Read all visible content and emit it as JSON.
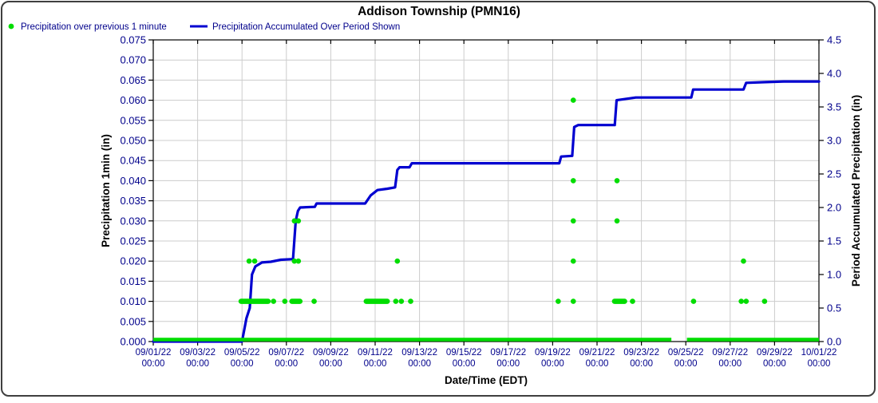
{
  "chart_data": {
    "type": "line",
    "title": "Addison Township (PMN16)",
    "legend": [
      {
        "label": "Precipitation over previous 1 minute",
        "marker": "dot-icon",
        "color": "#00dd00"
      },
      {
        "label": "Precipitation Accumulated Over Period Shown",
        "marker": "line-icon",
        "color": "#0000d0"
      }
    ],
    "x_axis": {
      "label": "Date/Time (EDT)",
      "range_days": [
        0,
        30
      ],
      "gridline_every_days": 2,
      "tick_labels": [
        {
          "date": "09/01/22",
          "time": "00:00"
        },
        {
          "date": "09/03/22",
          "time": "00:00"
        },
        {
          "date": "09/05/22",
          "time": "00:00"
        },
        {
          "date": "09/07/22",
          "time": "00:00"
        },
        {
          "date": "09/09/22",
          "time": "00:00"
        },
        {
          "date": "09/11/22",
          "time": "00:00"
        },
        {
          "date": "09/13/22",
          "time": "00:00"
        },
        {
          "date": "09/15/22",
          "time": "00:00"
        },
        {
          "date": "09/17/22",
          "time": "00:00"
        },
        {
          "date": "09/19/22",
          "time": "00:00"
        },
        {
          "date": "09/21/22",
          "time": "00:00"
        },
        {
          "date": "09/23/22",
          "time": "00:00"
        },
        {
          "date": "09/25/22",
          "time": "00:00"
        },
        {
          "date": "09/27/22",
          "time": "00:00"
        },
        {
          "date": "09/29/22",
          "time": "00:00"
        },
        {
          "date": "10/01/22",
          "time": "00:00"
        }
      ]
    },
    "left_axis": {
      "label": "Precipitation 1min (in)",
      "min": 0,
      "max": 0.075,
      "step": 0.005,
      "tick_labels": [
        "0.000",
        "0.005",
        "0.010",
        "0.015",
        "0.020",
        "0.025",
        "0.030",
        "0.035",
        "0.040",
        "0.045",
        "0.050",
        "0.055",
        "0.060",
        "0.065",
        "0.070",
        "0.075"
      ]
    },
    "right_axis": {
      "label": "Period Accumulated Precipitation (in)",
      "min": 0,
      "max": 4.5,
      "step": 0.5,
      "tick_labels": [
        "0.0",
        "0.5",
        "1.0",
        "1.5",
        "2.0",
        "2.5",
        "3.0",
        "3.5",
        "4.0",
        "4.5"
      ]
    },
    "grid": true,
    "colors": {
      "dots": "#00dd00",
      "line": "#0000d0",
      "grid": "#cccccc",
      "axis": "#000000",
      "tick_text": "#00008b",
      "title_text": "#000000"
    },
    "series": [
      {
        "name": "Precipitation over previous 1 minute",
        "type": "scatter",
        "axis": "left",
        "color": "#00dd00",
        "baseline_value": 0,
        "baseline_segments_days": [
          [
            0,
            23.35
          ],
          [
            24.05,
            30
          ]
        ],
        "dot_clusters": [
          {
            "start": 3.96,
            "end": 5.18,
            "value": 0.01
          },
          {
            "start": 6.25,
            "end": 6.64,
            "value": 0.01
          },
          {
            "start": 9.6,
            "end": 10.55,
            "value": 0.01
          },
          {
            "start": 20.79,
            "end": 21.25,
            "value": 0.01
          }
        ],
        "dots": [
          [
            4.32,
            0.02
          ],
          [
            4.57,
            0.02
          ],
          [
            5.42,
            0.01
          ],
          [
            5.93,
            0.01
          ],
          [
            6.36,
            0.02
          ],
          [
            6.54,
            0.02
          ],
          [
            6.36,
            0.03
          ],
          [
            6.54,
            0.03
          ],
          [
            7.25,
            0.01
          ],
          [
            10.93,
            0.01
          ],
          [
            11.18,
            0.01
          ],
          [
            11.0,
            0.02
          ],
          [
            11.6,
            0.01
          ],
          [
            18.25,
            0.01
          ],
          [
            18.93,
            0.01
          ],
          [
            18.93,
            0.02
          ],
          [
            18.93,
            0.03
          ],
          [
            18.93,
            0.04
          ],
          [
            18.93,
            0.06
          ],
          [
            20.9,
            0.03
          ],
          [
            20.9,
            0.04
          ],
          [
            21.6,
            0.01
          ],
          [
            24.35,
            0.01
          ],
          [
            26.5,
            0.01
          ],
          [
            26.72,
            0.01
          ],
          [
            26.6,
            0.02
          ],
          [
            27.55,
            0.01
          ]
        ]
      },
      {
        "name": "Precipitation Accumulated Over Period Shown",
        "type": "step-line",
        "axis": "right",
        "color": "#0000d0",
        "points": [
          [
            0,
            0
          ],
          [
            4.0,
            0
          ],
          [
            4.2,
            0.35
          ],
          [
            4.35,
            0.5
          ],
          [
            4.45,
            1.0
          ],
          [
            4.6,
            1.12
          ],
          [
            4.9,
            1.18
          ],
          [
            5.3,
            1.19
          ],
          [
            5.75,
            1.22
          ],
          [
            6.3,
            1.23
          ],
          [
            6.42,
            1.8
          ],
          [
            6.52,
            1.95
          ],
          [
            6.62,
            2.0
          ],
          [
            7.28,
            2.01
          ],
          [
            7.36,
            2.06
          ],
          [
            9.55,
            2.06
          ],
          [
            9.8,
            2.18
          ],
          [
            10.1,
            2.26
          ],
          [
            10.55,
            2.28
          ],
          [
            10.9,
            2.3
          ],
          [
            11.0,
            2.56
          ],
          [
            11.1,
            2.6
          ],
          [
            11.55,
            2.6
          ],
          [
            11.65,
            2.66
          ],
          [
            18.3,
            2.66
          ],
          [
            18.38,
            2.76
          ],
          [
            18.88,
            2.77
          ],
          [
            18.97,
            3.2
          ],
          [
            19.15,
            3.23
          ],
          [
            20.8,
            3.23
          ],
          [
            20.88,
            3.6
          ],
          [
            21.3,
            3.62
          ],
          [
            21.75,
            3.64
          ],
          [
            24.25,
            3.64
          ],
          [
            24.33,
            3.76
          ],
          [
            26.6,
            3.76
          ],
          [
            26.72,
            3.86
          ],
          [
            27.6,
            3.87
          ],
          [
            28.4,
            3.88
          ],
          [
            30,
            3.88
          ]
        ]
      }
    ]
  }
}
